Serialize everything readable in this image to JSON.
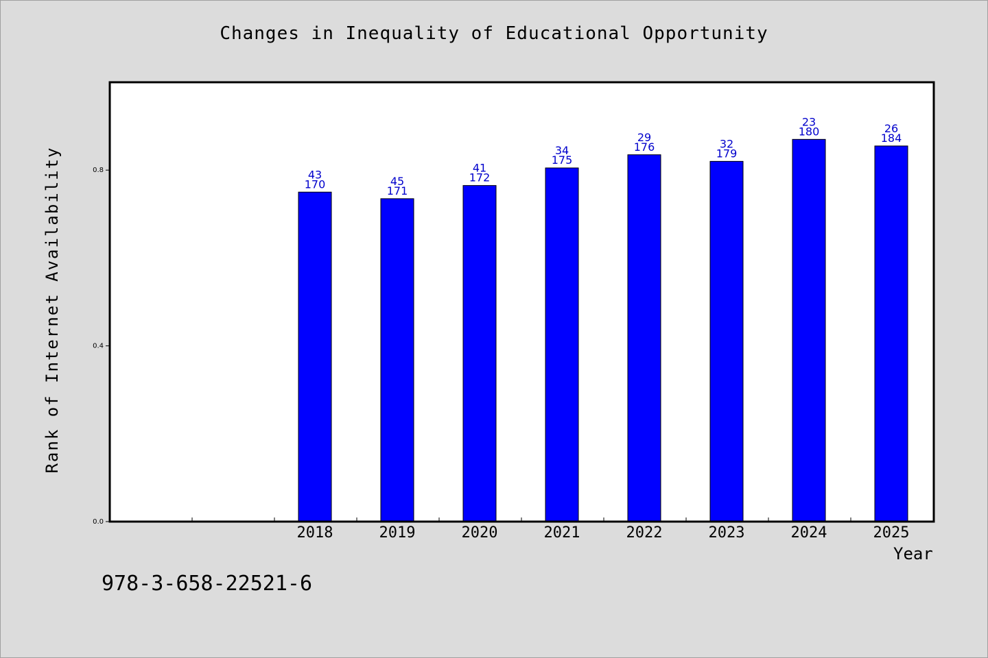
{
  "chart_data": {
    "type": "bar",
    "title": "Changes in Inequality of Educational Opportunity",
    "xlabel": "Year",
    "ylabel": "Rank of Internet Availability",
    "categories": [
      "2018",
      "2019",
      "2020",
      "2021",
      "2022",
      "2023",
      "2024",
      "2025"
    ],
    "values": [
      0.75,
      0.735,
      0.765,
      0.805,
      0.835,
      0.82,
      0.87,
      0.855
    ],
    "annotations_top": [
      "43",
      "45",
      "41",
      "34",
      "29",
      "32",
      "23",
      "26"
    ],
    "annotations_bottom": [
      "170",
      "171",
      "172",
      "175",
      "176",
      "179",
      "180",
      "184"
    ],
    "ylim": [
      0,
      1.0
    ],
    "yticks": [
      "0.0",
      "0.4",
      "0.8"
    ],
    "grid": false,
    "bar_color": "#0000ff",
    "annotation_color": "#0000cc"
  },
  "footer": {
    "isbn": "978-3-658-22521-6"
  }
}
